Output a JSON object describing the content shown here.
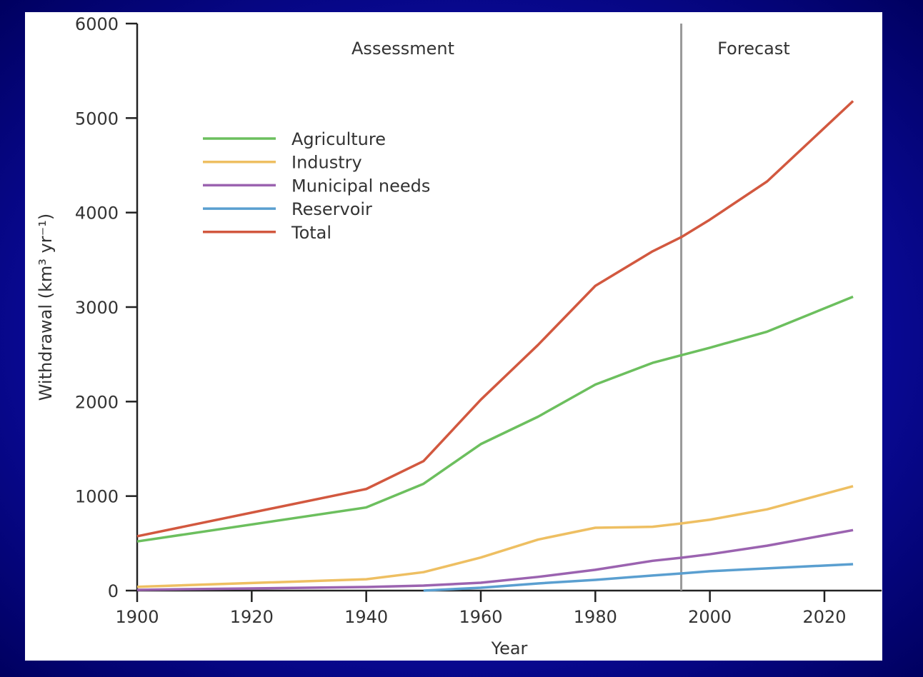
{
  "chart_data": {
    "type": "line",
    "xlabel": "Year",
    "ylabel": "Withdrawal (km³ yr⁻¹)",
    "xlim": [
      1900,
      2030
    ],
    "ylim": [
      0,
      6000
    ],
    "xticks": [
      1900,
      1920,
      1940,
      1960,
      1980,
      2000,
      2020
    ],
    "yticks": [
      0,
      1000,
      2000,
      3000,
      4000,
      5000,
      6000
    ],
    "grid": false,
    "legend_position": "top-left",
    "divider_year": 1995,
    "annotations": [
      "Assessment",
      "Forecast"
    ],
    "x": [
      1900,
      1940,
      1950,
      1960,
      1970,
      1980,
      1990,
      1995,
      2000,
      2010,
      2025
    ],
    "series": [
      {
        "name": "Agriculture",
        "color": "#6cbf5e",
        "values": [
          520,
          880,
          1130,
          1550,
          1840,
          2180,
          2410,
          2490,
          2570,
          2740,
          3110
        ]
      },
      {
        "name": "Industry",
        "color": "#eebf62",
        "values": [
          40,
          120,
          195,
          350,
          540,
          665,
          675,
          710,
          750,
          860,
          1105
        ]
      },
      {
        "name": "Municipal needs",
        "color": "#9b63b0",
        "values": [
          8,
          38,
          53,
          83,
          145,
          220,
          315,
          348,
          385,
          475,
          640
        ]
      },
      {
        "name": "Reservoir",
        "color": "#5a9fd0",
        "values": [
          null,
          null,
          0,
          30,
          76,
          113,
          160,
          181,
          205,
          235,
          280
        ]
      },
      {
        "name": "Total",
        "color": "#d2583f",
        "values": [
          575,
          1075,
          1370,
          2020,
          2600,
          3225,
          3590,
          3740,
          3925,
          4330,
          5180
        ]
      }
    ]
  }
}
